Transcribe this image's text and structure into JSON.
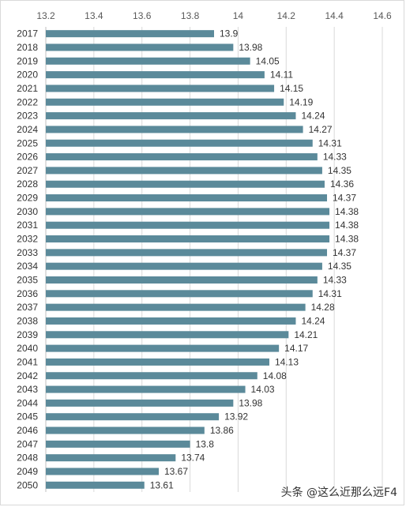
{
  "chart_data": {
    "type": "bar",
    "orientation": "horizontal",
    "categories": [
      "2017",
      "2018",
      "2019",
      "2020",
      "2021",
      "2022",
      "2023",
      "2024",
      "2025",
      "2026",
      "2027",
      "2028",
      "2029",
      "2030",
      "2031",
      "2032",
      "2033",
      "2034",
      "2035",
      "2036",
      "2037",
      "2038",
      "2039",
      "2040",
      "2041",
      "2042",
      "2043",
      "2044",
      "2045",
      "2046",
      "2047",
      "2048",
      "2049",
      "2050"
    ],
    "values": [
      13.9,
      13.98,
      14.05,
      14.11,
      14.15,
      14.19,
      14.24,
      14.27,
      14.31,
      14.33,
      14.35,
      14.36,
      14.37,
      14.38,
      14.38,
      14.38,
      14.37,
      14.35,
      14.33,
      14.31,
      14.28,
      14.24,
      14.21,
      14.17,
      14.13,
      14.08,
      14.03,
      13.98,
      13.92,
      13.86,
      13.8,
      13.74,
      13.67,
      13.61
    ],
    "value_labels": [
      "13.9",
      "13.98",
      "14.05",
      "14.11",
      "14.15",
      "14.19",
      "14.24",
      "14.27",
      "14.31",
      "14.33",
      "14.35",
      "14.36",
      "14.37",
      "14.38",
      "14.38",
      "14.38",
      "14.37",
      "14.35",
      "14.33",
      "14.31",
      "14.28",
      "14.24",
      "14.21",
      "14.17",
      "14.13",
      "14.08",
      "14.03",
      "13.98",
      "13.92",
      "13.86",
      "13.8",
      "13.74",
      "13.67",
      "13.61"
    ],
    "xlim": [
      13.2,
      14.6
    ],
    "ticks": [
      "13.2",
      "13.4",
      "13.6",
      "13.8",
      "14",
      "14.2",
      "14.4",
      "14.6"
    ],
    "tick_values": [
      13.2,
      13.4,
      13.6,
      13.8,
      14.0,
      14.2,
      14.4,
      14.6
    ],
    "axis_position": "top",
    "grid": true,
    "bar_color": "#5b8a9a",
    "grid_color": "#d9d9d9"
  },
  "watermark": "头条 @这么近那么远F4"
}
